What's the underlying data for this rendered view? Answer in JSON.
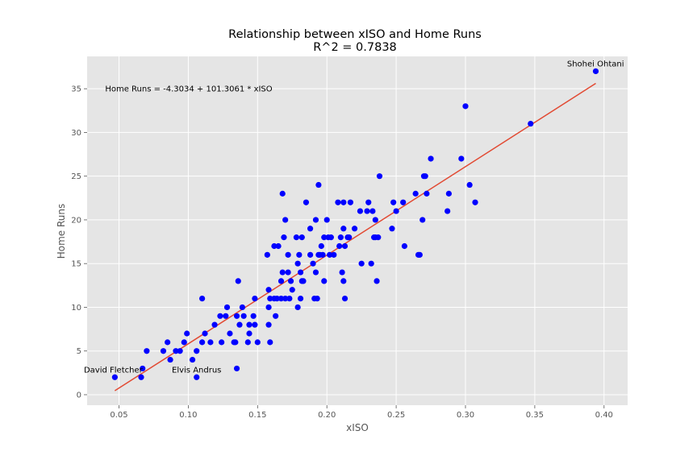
{
  "chart_data": {
    "type": "scatter",
    "title": "Relationship between xISO and Home Runs",
    "subtitle": "R^2 = 0.7838",
    "xlabel": "xISO",
    "ylabel": "Home Runs",
    "xlim": [
      0.027,
      0.417
    ],
    "ylim": [
      -1.2,
      38.7
    ],
    "xticks": [
      0.05,
      0.1,
      0.15,
      0.2,
      0.25,
      0.3,
      0.35,
      0.4
    ],
    "xtick_labels": [
      "0.05",
      "0.10",
      "0.15",
      "0.20",
      "0.25",
      "0.30",
      "0.35",
      "0.40"
    ],
    "yticks": [
      0,
      5,
      10,
      15,
      20,
      25,
      30,
      35
    ],
    "ytick_labels": [
      "0",
      "5",
      "10",
      "15",
      "20",
      "25",
      "30",
      "35"
    ],
    "grid": true,
    "background": "#e5e5e5",
    "point_color": "#0000ff",
    "line_color": "#e24a33",
    "regression": {
      "intercept": -4.3034,
      "slope": 101.3061,
      "x_range": [
        0.047,
        0.394
      ]
    },
    "equation_text": "Home Runs = -4.3034 + 101.3061 * xISO",
    "point_labels": [
      {
        "text": "Shohei Ohtani",
        "x": 0.394,
        "y": 37
      },
      {
        "text": "David Fletcher",
        "x": 0.047,
        "y": 2
      },
      {
        "text": "Elvis Andrus",
        "x": 0.106,
        "y": 2
      }
    ],
    "points": [
      [
        0.047,
        2
      ],
      [
        0.066,
        2
      ],
      [
        0.067,
        3
      ],
      [
        0.07,
        5
      ],
      [
        0.082,
        5
      ],
      [
        0.085,
        6
      ],
      [
        0.087,
        4
      ],
      [
        0.091,
        5
      ],
      [
        0.094,
        5
      ],
      [
        0.097,
        6
      ],
      [
        0.099,
        7
      ],
      [
        0.103,
        4
      ],
      [
        0.106,
        2
      ],
      [
        0.106,
        5
      ],
      [
        0.11,
        6
      ],
      [
        0.11,
        11
      ],
      [
        0.112,
        7
      ],
      [
        0.116,
        6
      ],
      [
        0.119,
        8
      ],
      [
        0.123,
        9
      ],
      [
        0.124,
        6
      ],
      [
        0.127,
        9
      ],
      [
        0.128,
        10
      ],
      [
        0.13,
        7
      ],
      [
        0.133,
        6
      ],
      [
        0.134,
        6
      ],
      [
        0.135,
        9
      ],
      [
        0.135,
        3
      ],
      [
        0.136,
        13
      ],
      [
        0.137,
        8
      ],
      [
        0.139,
        10
      ],
      [
        0.14,
        9
      ],
      [
        0.143,
        6
      ],
      [
        0.144,
        7
      ],
      [
        0.144,
        8
      ],
      [
        0.147,
        9
      ],
      [
        0.148,
        8
      ],
      [
        0.148,
        11
      ],
      [
        0.15,
        6
      ],
      [
        0.157,
        16
      ],
      [
        0.158,
        10
      ],
      [
        0.158,
        12
      ],
      [
        0.158,
        8
      ],
      [
        0.159,
        6
      ],
      [
        0.159,
        11
      ],
      [
        0.162,
        17
      ],
      [
        0.162,
        11
      ],
      [
        0.163,
        9
      ],
      [
        0.164,
        11
      ],
      [
        0.165,
        17
      ],
      [
        0.167,
        13
      ],
      [
        0.167,
        11
      ],
      [
        0.168,
        14
      ],
      [
        0.168,
        23
      ],
      [
        0.169,
        18
      ],
      [
        0.17,
        11
      ],
      [
        0.17,
        20
      ],
      [
        0.172,
        14
      ],
      [
        0.172,
        16
      ],
      [
        0.173,
        11
      ],
      [
        0.174,
        13
      ],
      [
        0.175,
        12
      ],
      [
        0.178,
        18
      ],
      [
        0.179,
        10
      ],
      [
        0.179,
        15
      ],
      [
        0.18,
        16
      ],
      [
        0.181,
        14
      ],
      [
        0.181,
        11
      ],
      [
        0.182,
        13
      ],
      [
        0.182,
        18
      ],
      [
        0.183,
        13
      ],
      [
        0.185,
        22
      ],
      [
        0.188,
        19
      ],
      [
        0.188,
        16
      ],
      [
        0.19,
        15
      ],
      [
        0.191,
        11
      ],
      [
        0.192,
        20
      ],
      [
        0.192,
        14
      ],
      [
        0.193,
        11
      ],
      [
        0.194,
        24
      ],
      [
        0.194,
        16
      ],
      [
        0.195,
        16
      ],
      [
        0.196,
        17
      ],
      [
        0.197,
        16
      ],
      [
        0.198,
        13
      ],
      [
        0.198,
        18
      ],
      [
        0.2,
        20
      ],
      [
        0.201,
        18
      ],
      [
        0.202,
        16
      ],
      [
        0.203,
        18
      ],
      [
        0.205,
        16
      ],
      [
        0.208,
        22
      ],
      [
        0.209,
        17
      ],
      [
        0.21,
        18
      ],
      [
        0.211,
        14
      ],
      [
        0.212,
        19
      ],
      [
        0.212,
        22
      ],
      [
        0.212,
        13
      ],
      [
        0.213,
        11
      ],
      [
        0.213,
        17
      ],
      [
        0.215,
        18
      ],
      [
        0.216,
        18
      ],
      [
        0.217,
        22
      ],
      [
        0.22,
        19
      ],
      [
        0.224,
        21
      ],
      [
        0.225,
        15
      ],
      [
        0.229,
        21
      ],
      [
        0.23,
        22
      ],
      [
        0.232,
        15
      ],
      [
        0.233,
        21
      ],
      [
        0.234,
        18
      ],
      [
        0.235,
        20
      ],
      [
        0.235,
        18
      ],
      [
        0.236,
        13
      ],
      [
        0.237,
        18
      ],
      [
        0.238,
        25
      ],
      [
        0.247,
        19
      ],
      [
        0.248,
        22
      ],
      [
        0.25,
        21
      ],
      [
        0.255,
        22
      ],
      [
        0.256,
        17
      ],
      [
        0.264,
        23
      ],
      [
        0.266,
        16
      ],
      [
        0.267,
        16
      ],
      [
        0.269,
        20
      ],
      [
        0.27,
        25
      ],
      [
        0.271,
        25
      ],
      [
        0.272,
        23
      ],
      [
        0.275,
        27
      ],
      [
        0.287,
        21
      ],
      [
        0.288,
        23
      ],
      [
        0.297,
        27
      ],
      [
        0.3,
        33
      ],
      [
        0.303,
        24
      ],
      [
        0.307,
        22
      ],
      [
        0.347,
        31
      ],
      [
        0.394,
        37
      ]
    ]
  }
}
